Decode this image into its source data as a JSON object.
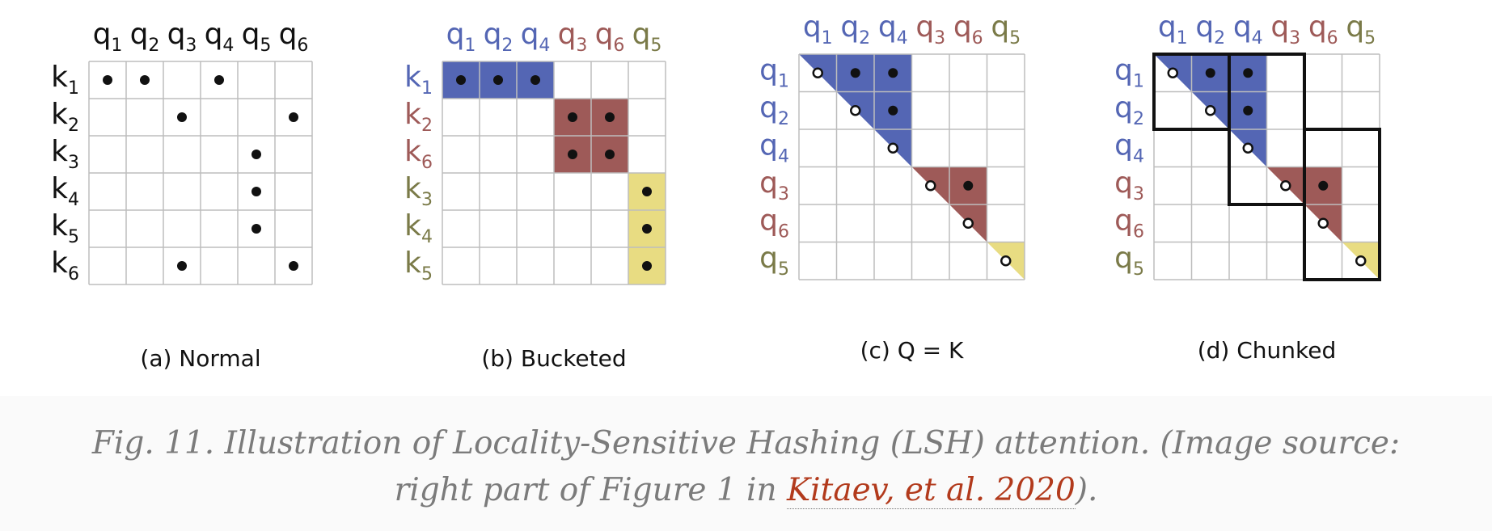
{
  "colors": {
    "blue": "#5466b4",
    "brown": "#9e5a58",
    "yellow": "#e8dc82",
    "grid": "#bdbdbd",
    "label_default": "#111111",
    "label_blue": "#5466b4",
    "label_brown": "#9e5a58",
    "label_olive": "#7a7a48"
  },
  "panels": [
    {
      "id": "a",
      "caption": "(a) Normal",
      "cols": [
        {
          "base": "q",
          "sub": "1",
          "color": "label_default"
        },
        {
          "base": "q",
          "sub": "2",
          "color": "label_default"
        },
        {
          "base": "q",
          "sub": "3",
          "color": "label_default"
        },
        {
          "base": "q",
          "sub": "4",
          "color": "label_default"
        },
        {
          "base": "q",
          "sub": "5",
          "color": "label_default"
        },
        {
          "base": "q",
          "sub": "6",
          "color": "label_default"
        }
      ],
      "rows": [
        {
          "base": "k",
          "sub": "1",
          "color": "label_default"
        },
        {
          "base": "k",
          "sub": "2",
          "color": "label_default"
        },
        {
          "base": "k",
          "sub": "3",
          "color": "label_default"
        },
        {
          "base": "k",
          "sub": "4",
          "color": "label_default"
        },
        {
          "base": "k",
          "sub": "5",
          "color": "label_default"
        },
        {
          "base": "k",
          "sub": "6",
          "color": "label_default"
        }
      ],
      "fills": [],
      "dots": [
        {
          "r": 0,
          "c": 0
        },
        {
          "r": 0,
          "c": 1
        },
        {
          "r": 0,
          "c": 3
        },
        {
          "r": 1,
          "c": 2
        },
        {
          "r": 1,
          "c": 5
        },
        {
          "r": 2,
          "c": 4
        },
        {
          "r": 3,
          "c": 4
        },
        {
          "r": 4,
          "c": 4
        },
        {
          "r": 5,
          "c": 2
        },
        {
          "r": 5,
          "c": 5
        }
      ],
      "chunks": []
    },
    {
      "id": "b",
      "caption": "(b) Bucketed",
      "cols": [
        {
          "base": "q",
          "sub": "1",
          "color": "label_blue"
        },
        {
          "base": "q",
          "sub": "2",
          "color": "label_blue"
        },
        {
          "base": "q",
          "sub": "4",
          "color": "label_blue"
        },
        {
          "base": "q",
          "sub": "3",
          "color": "label_brown"
        },
        {
          "base": "q",
          "sub": "6",
          "color": "label_brown"
        },
        {
          "base": "q",
          "sub": "5",
          "color": "label_olive"
        }
      ],
      "rows": [
        {
          "base": "k",
          "sub": "1",
          "color": "label_blue"
        },
        {
          "base": "k",
          "sub": "2",
          "color": "label_brown"
        },
        {
          "base": "k",
          "sub": "6",
          "color": "label_brown"
        },
        {
          "base": "k",
          "sub": "3",
          "color": "label_olive"
        },
        {
          "base": "k",
          "sub": "4",
          "color": "label_olive"
        },
        {
          "base": "k",
          "sub": "5",
          "color": "label_olive"
        }
      ],
      "fills": [
        {
          "type": "rect",
          "r0": 0,
          "r1": 1,
          "c0": 0,
          "c1": 3,
          "color": "blue"
        },
        {
          "type": "rect",
          "r0": 1,
          "r1": 3,
          "c0": 3,
          "c1": 5,
          "color": "brown"
        },
        {
          "type": "rect",
          "r0": 3,
          "r1": 6,
          "c0": 5,
          "c1": 6,
          "color": "yellow"
        }
      ],
      "dots": [
        {
          "r": 0,
          "c": 0
        },
        {
          "r": 0,
          "c": 1
        },
        {
          "r": 0,
          "c": 2
        },
        {
          "r": 1,
          "c": 3
        },
        {
          "r": 1,
          "c": 4
        },
        {
          "r": 2,
          "c": 3
        },
        {
          "r": 2,
          "c": 4
        },
        {
          "r": 3,
          "c": 5
        },
        {
          "r": 4,
          "c": 5
        },
        {
          "r": 5,
          "c": 5
        }
      ],
      "chunks": []
    },
    {
      "id": "c",
      "caption": "(c) Q = K",
      "cols": [
        {
          "base": "q",
          "sub": "1",
          "color": "label_blue"
        },
        {
          "base": "q",
          "sub": "2",
          "color": "label_blue"
        },
        {
          "base": "q",
          "sub": "4",
          "color": "label_blue"
        },
        {
          "base": "q",
          "sub": "3",
          "color": "label_brown"
        },
        {
          "base": "q",
          "sub": "6",
          "color": "label_brown"
        },
        {
          "base": "q",
          "sub": "5",
          "color": "label_olive"
        }
      ],
      "rows": [
        {
          "base": "q",
          "sub": "1",
          "color": "label_blue"
        },
        {
          "base": "q",
          "sub": "2",
          "color": "label_blue"
        },
        {
          "base": "q",
          "sub": "4",
          "color": "label_blue"
        },
        {
          "base": "q",
          "sub": "3",
          "color": "label_brown"
        },
        {
          "base": "q",
          "sub": "6",
          "color": "label_brown"
        },
        {
          "base": "q",
          "sub": "5",
          "color": "label_olive"
        }
      ],
      "fills": [
        {
          "type": "tri",
          "start": 0,
          "end": 3,
          "color": "blue"
        },
        {
          "type": "tri",
          "start": 3,
          "end": 5,
          "color": "brown"
        },
        {
          "type": "tri",
          "start": 5,
          "end": 6,
          "color": "yellow"
        }
      ],
      "dots": [
        {
          "r": 0,
          "c": 0,
          "hollow": true
        },
        {
          "r": 0,
          "c": 1
        },
        {
          "r": 0,
          "c": 2
        },
        {
          "r": 1,
          "c": 1,
          "hollow": true
        },
        {
          "r": 1,
          "c": 2
        },
        {
          "r": 2,
          "c": 2,
          "hollow": true
        },
        {
          "r": 3,
          "c": 3,
          "hollow": true
        },
        {
          "r": 3,
          "c": 4
        },
        {
          "r": 4,
          "c": 4,
          "hollow": true
        },
        {
          "r": 5,
          "c": 5,
          "hollow": true
        }
      ],
      "chunks": []
    },
    {
      "id": "d",
      "caption": "(d) Chunked",
      "cols": [
        {
          "base": "q",
          "sub": "1",
          "color": "label_blue"
        },
        {
          "base": "q",
          "sub": "2",
          "color": "label_blue"
        },
        {
          "base": "q",
          "sub": "4",
          "color": "label_blue"
        },
        {
          "base": "q",
          "sub": "3",
          "color": "label_brown"
        },
        {
          "base": "q",
          "sub": "6",
          "color": "label_brown"
        },
        {
          "base": "q",
          "sub": "5",
          "color": "label_olive"
        }
      ],
      "rows": [
        {
          "base": "q",
          "sub": "1",
          "color": "label_blue"
        },
        {
          "base": "q",
          "sub": "2",
          "color": "label_blue"
        },
        {
          "base": "q",
          "sub": "4",
          "color": "label_blue"
        },
        {
          "base": "q",
          "sub": "3",
          "color": "label_brown"
        },
        {
          "base": "q",
          "sub": "6",
          "color": "label_brown"
        },
        {
          "base": "q",
          "sub": "5",
          "color": "label_olive"
        }
      ],
      "fills": [
        {
          "type": "tri",
          "start": 0,
          "end": 3,
          "color": "blue"
        },
        {
          "type": "tri",
          "start": 3,
          "end": 5,
          "color": "brown"
        },
        {
          "type": "tri",
          "start": 5,
          "end": 6,
          "color": "yellow"
        }
      ],
      "dots": [
        {
          "r": 0,
          "c": 0,
          "hollow": true
        },
        {
          "r": 0,
          "c": 1
        },
        {
          "r": 0,
          "c": 2
        },
        {
          "r": 1,
          "c": 1,
          "hollow": true
        },
        {
          "r": 1,
          "c": 2
        },
        {
          "r": 2,
          "c": 2,
          "hollow": true
        },
        {
          "r": 3,
          "c": 3,
          "hollow": true
        },
        {
          "r": 3,
          "c": 4
        },
        {
          "r": 4,
          "c": 4,
          "hollow": true
        },
        {
          "r": 5,
          "c": 5,
          "hollow": true
        }
      ],
      "chunks": [
        {
          "r0": 0,
          "r1": 2,
          "c0": 0,
          "c1": 2
        },
        {
          "r0": 0,
          "r1": 4,
          "c0": 2,
          "c1": 4
        },
        {
          "r0": 2,
          "r1": 6,
          "c0": 4,
          "c1": 6
        }
      ]
    }
  ],
  "caption": {
    "line1": "Fig. 11. Illustration of Locality-Sensitive Hashing (LSH) attention. (Image source:",
    "line2_pre": "right part of Figure 1 in ",
    "link_text": "Kitaev, et al. 2020",
    "line2_post": ")."
  }
}
